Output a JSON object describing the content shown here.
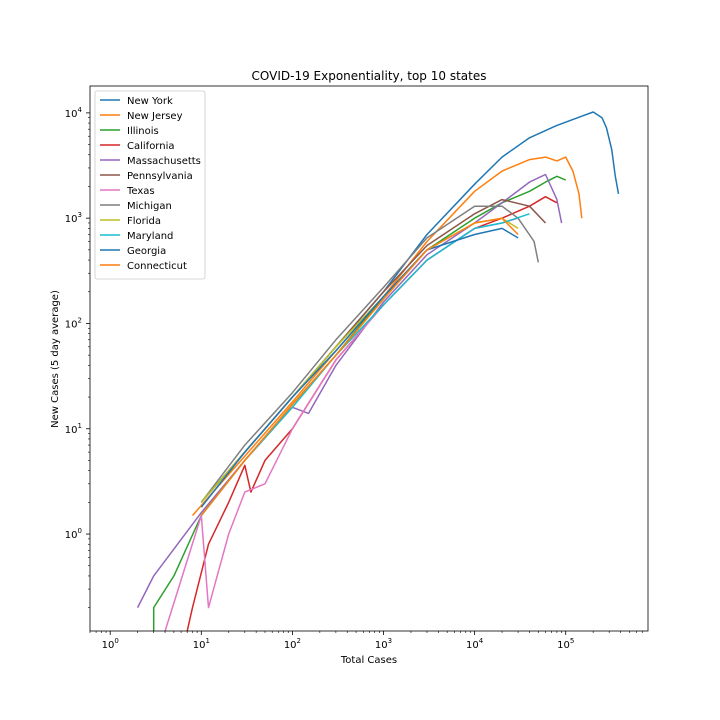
{
  "chart_data": {
    "type": "line",
    "title": "COVID-19 Exponentiality, top 10 states",
    "xlabel": "Total Cases",
    "ylabel": "New Cases (5 day average)",
    "xscale": "log",
    "yscale": "log",
    "xlim": [
      0.6,
      800000
    ],
    "ylim": [
      0.12,
      18000
    ],
    "x_ticks": [
      {
        "value": 1,
        "base": "10",
        "exp": "0"
      },
      {
        "value": 10,
        "base": "10",
        "exp": "1"
      },
      {
        "value": 100,
        "base": "10",
        "exp": "2"
      },
      {
        "value": 1000,
        "base": "10",
        "exp": "3"
      },
      {
        "value": 10000,
        "base": "10",
        "exp": "4"
      },
      {
        "value": 100000,
        "base": "10",
        "exp": "5"
      }
    ],
    "y_ticks": [
      {
        "value": 1,
        "base": "10",
        "exp": "0"
      },
      {
        "value": 10,
        "base": "10",
        "exp": "1"
      },
      {
        "value": 100,
        "base": "10",
        "exp": "2"
      },
      {
        "value": 1000,
        "base": "10",
        "exp": "3"
      },
      {
        "value": 10000,
        "base": "10",
        "exp": "4"
      }
    ],
    "legend_position": "top-left",
    "series": [
      {
        "name": "New York",
        "color": "#1f77b4",
        "points": [
          [
            10,
            2
          ],
          [
            30,
            6
          ],
          [
            100,
            20
          ],
          [
            300,
            60
          ],
          [
            1000,
            200
          ],
          [
            3000,
            700
          ],
          [
            10000,
            2100
          ],
          [
            20000,
            3800
          ],
          [
            40000,
            5800
          ],
          [
            80000,
            7600
          ],
          [
            150000,
            9300
          ],
          [
            200000,
            10200
          ],
          [
            250000,
            9000
          ],
          [
            280000,
            7200
          ],
          [
            320000,
            4500
          ],
          [
            350000,
            2500
          ],
          [
            380000,
            1700
          ]
        ]
      },
      {
        "name": "New Jersey",
        "color": "#ff7f0e",
        "points": [
          [
            8,
            1.5
          ],
          [
            30,
            5.5
          ],
          [
            100,
            18
          ],
          [
            300,
            55
          ],
          [
            1000,
            180
          ],
          [
            3000,
            600
          ],
          [
            10000,
            1800
          ],
          [
            20000,
            2800
          ],
          [
            40000,
            3600
          ],
          [
            60000,
            3800
          ],
          [
            80000,
            3500
          ],
          [
            100000,
            3800
          ],
          [
            120000,
            2800
          ],
          [
            140000,
            1700
          ],
          [
            150000,
            1000
          ]
        ]
      },
      {
        "name": "Illinois",
        "color": "#2ca02c",
        "points": [
          [
            3,
            0.12
          ],
          [
            3,
            0.2
          ],
          [
            5,
            0.4
          ],
          [
            10,
            1.5
          ],
          [
            30,
            5
          ],
          [
            100,
            17
          ],
          [
            300,
            50
          ],
          [
            1000,
            180
          ],
          [
            3000,
            500
          ],
          [
            10000,
            1000
          ],
          [
            20000,
            1400
          ],
          [
            40000,
            1800
          ],
          [
            60000,
            2200
          ],
          [
            80000,
            2500
          ],
          [
            100000,
            2300
          ]
        ]
      },
      {
        "name": "California",
        "color": "#d62728",
        "points": [
          [
            7,
            0.12
          ],
          [
            8,
            0.2
          ],
          [
            12,
            0.8
          ],
          [
            20,
            2
          ],
          [
            30,
            4.5
          ],
          [
            35,
            2.5
          ],
          [
            50,
            5
          ],
          [
            100,
            10
          ],
          [
            300,
            45
          ],
          [
            1000,
            150
          ],
          [
            3000,
            400
          ],
          [
            10000,
            800
          ],
          [
            20000,
            1000
          ],
          [
            40000,
            1300
          ],
          [
            60000,
            1600
          ],
          [
            80000,
            1400
          ]
        ]
      },
      {
        "name": "Massachusetts",
        "color": "#9467bd",
        "points": [
          [
            2,
            0.2
          ],
          [
            3,
            0.4
          ],
          [
            10,
            1.6
          ],
          [
            30,
            5
          ],
          [
            100,
            16
          ],
          [
            150,
            14
          ],
          [
            300,
            40
          ],
          [
            1000,
            160
          ],
          [
            3000,
            450
          ],
          [
            10000,
            900
          ],
          [
            20000,
            1400
          ],
          [
            40000,
            2200
          ],
          [
            60000,
            2600
          ],
          [
            80000,
            1500
          ],
          [
            90000,
            900
          ]
        ]
      },
      {
        "name": "Pennsylvania",
        "color": "#8c564b",
        "points": [
          [
            10,
            2
          ],
          [
            30,
            6
          ],
          [
            100,
            20
          ],
          [
            300,
            60
          ],
          [
            1000,
            200
          ],
          [
            3000,
            550
          ],
          [
            10000,
            1100
          ],
          [
            20000,
            1500
          ],
          [
            40000,
            1300
          ],
          [
            60000,
            900
          ]
        ]
      },
      {
        "name": "Texas",
        "color": "#e377c2",
        "points": [
          [
            4,
            0.12
          ],
          [
            10,
            1.5
          ],
          [
            12,
            0.2
          ],
          [
            20,
            1
          ],
          [
            30,
            2.5
          ],
          [
            50,
            3
          ],
          [
            100,
            10
          ],
          [
            300,
            45
          ],
          [
            1000,
            150
          ],
          [
            3000,
            400
          ],
          [
            10000,
            800
          ],
          [
            20000,
            900
          ],
          [
            30000,
            1000
          ]
        ]
      },
      {
        "name": "Michigan",
        "color": "#7f7f7f",
        "points": [
          [
            10,
            2
          ],
          [
            30,
            7
          ],
          [
            100,
            22
          ],
          [
            300,
            70
          ],
          [
            1000,
            220
          ],
          [
            3000,
            650
          ],
          [
            10000,
            1300
          ],
          [
            20000,
            1300
          ],
          [
            30000,
            1000
          ],
          [
            45000,
            600
          ],
          [
            50000,
            380
          ]
        ]
      },
      {
        "name": "Florida",
        "color": "#bcbd22",
        "points": [
          [
            10,
            2
          ],
          [
            30,
            6
          ],
          [
            100,
            20
          ],
          [
            300,
            60
          ],
          [
            1000,
            180
          ],
          [
            3000,
            500
          ],
          [
            10000,
            900
          ],
          [
            20000,
            1000
          ],
          [
            30000,
            800
          ]
        ]
      },
      {
        "name": "Maryland",
        "color": "#17becf",
        "points": [
          [
            10,
            1.5
          ],
          [
            30,
            5
          ],
          [
            100,
            16
          ],
          [
            300,
            50
          ],
          [
            1000,
            150
          ],
          [
            3000,
            400
          ],
          [
            10000,
            800
          ],
          [
            20000,
            900
          ],
          [
            40000,
            1100
          ]
        ]
      },
      {
        "name": "Georgia",
        "color": "#1f77b4",
        "points": [
          [
            10,
            1.8
          ],
          [
            30,
            6
          ],
          [
            100,
            20
          ],
          [
            300,
            55
          ],
          [
            1000,
            180
          ],
          [
            3000,
            500
          ],
          [
            10000,
            700
          ],
          [
            20000,
            800
          ],
          [
            30000,
            650
          ]
        ]
      },
      {
        "name": "Connecticut",
        "color": "#ff7f0e",
        "points": [
          [
            10,
            1.5
          ],
          [
            30,
            5
          ],
          [
            100,
            17
          ],
          [
            300,
            50
          ],
          [
            1000,
            170
          ],
          [
            3000,
            500
          ],
          [
            10000,
            900
          ],
          [
            20000,
            1000
          ],
          [
            30000,
            700
          ]
        ]
      }
    ]
  }
}
